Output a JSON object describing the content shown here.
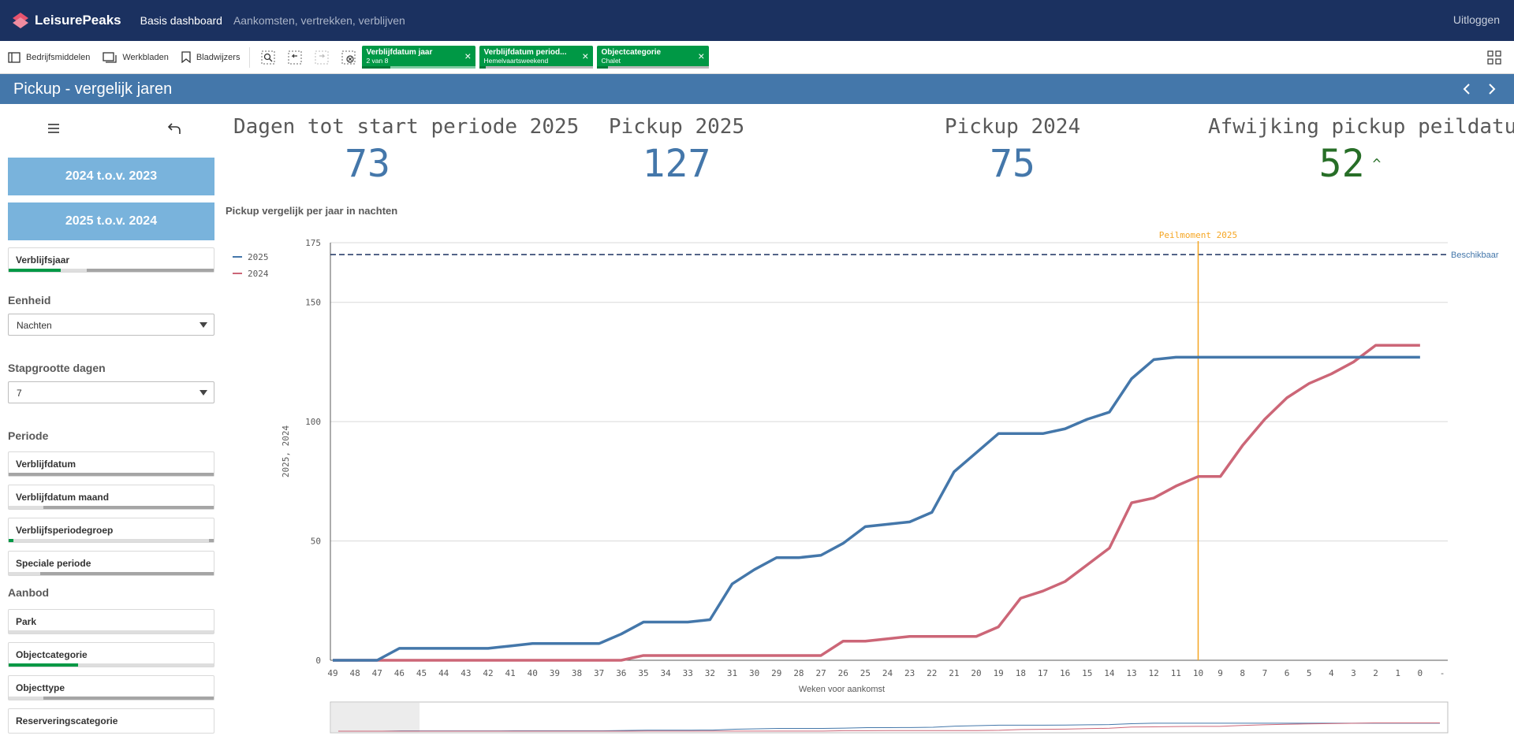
{
  "topbar": {
    "logo_text": "LeisurePeaks",
    "app_title": "Basis dashboard",
    "sheet_subtitle": "Aankomsten, vertrekken, verblijven",
    "logout": "Uitloggen"
  },
  "toolbar": {
    "assets": "Bedrijfsmiddelen",
    "sheets": "Werkbladen",
    "bookmarks": "Bladwijzers",
    "selections": [
      {
        "title": "Verblijfdatum jaar",
        "sub": "2 van 8",
        "fill": 0.25
      },
      {
        "title": "Verblijfdatum period...",
        "sub": "Hemelvaartsweekend",
        "fill": 0.05
      },
      {
        "title": "Objectcategorie",
        "sub": "Chalet",
        "fill": 0.1
      }
    ]
  },
  "sheet": {
    "title": "Pickup - vergelijk jaren"
  },
  "sidebar": {
    "btn_2024": "2024 t.o.v. 2023",
    "btn_2025": "2025 t.o.v. 2024",
    "verblijfsjaar": "Verblijfsjaar",
    "eenheid_label": "Eenheid",
    "eenheid_value": "Nachten",
    "stap_label": "Stapgrootte dagen",
    "stap_value": "7",
    "periode_label": "Periode",
    "periode_items": [
      "Verblijfdatum",
      "Verblijfdatum maand",
      "Verblijfsperiodegroep",
      "Speciale periode"
    ],
    "aanbod_label": "Aanbod",
    "aanbod_items": [
      "Park",
      "Objectcategorie",
      "Objecttype",
      "Reserveringscategorie"
    ]
  },
  "kpis": [
    {
      "title": "Dagen tot start periode 2025",
      "value": "73"
    },
    {
      "title": "Pickup 2025",
      "value": "127"
    },
    {
      "title": "Pickup 2024",
      "value": "75"
    },
    {
      "title": "Afwijking pickup peildatum",
      "value": "52"
    }
  ],
  "colors": {
    "topbar": "#1b3160",
    "sheetbar": "#4477aa",
    "series_2025": "#4477aa",
    "series_2024": "#cc6677",
    "peilmoment": "#f5a623",
    "selection_green": "#009845",
    "positive": "#276e27"
  },
  "chart_data": {
    "type": "line",
    "title": "Pickup vergelijk per jaar in nachten",
    "xlabel": "Weken voor aankomst",
    "ylabel": "2025, 2024",
    "categories": [
      "49",
      "48",
      "47",
      "46",
      "45",
      "44",
      "43",
      "42",
      "41",
      "40",
      "39",
      "38",
      "37",
      "36",
      "35",
      "34",
      "33",
      "32",
      "31",
      "30",
      "29",
      "28",
      "27",
      "26",
      "25",
      "24",
      "23",
      "22",
      "21",
      "20",
      "19",
      "18",
      "17",
      "16",
      "15",
      "14",
      "13",
      "12",
      "11",
      "10",
      "9",
      "8",
      "7",
      "6",
      "5",
      "4",
      "3",
      "2",
      "1",
      "0",
      "-"
    ],
    "ylim": [
      0,
      175
    ],
    "yticks": [
      0,
      50,
      100,
      150,
      175
    ],
    "series": [
      {
        "name": "2025",
        "values": [
          0,
          0,
          0,
          5,
          5,
          5,
          5,
          5,
          6,
          7,
          7,
          7,
          7,
          11,
          16,
          16,
          16,
          17,
          32,
          38,
          43,
          43,
          44,
          49,
          56,
          57,
          58,
          62,
          79,
          87,
          95,
          95,
          95,
          97,
          101,
          104,
          118,
          126,
          127,
          127,
          127,
          127,
          127,
          127,
          127,
          127,
          127,
          127,
          127,
          127,
          127
        ]
      },
      {
        "name": "2024",
        "values": [
          0,
          0,
          0,
          0,
          0,
          0,
          0,
          0,
          0,
          0,
          0,
          0,
          0,
          0,
          2,
          2,
          2,
          2,
          2,
          2,
          2,
          2,
          2,
          8,
          8,
          9,
          10,
          10,
          10,
          10,
          14,
          26,
          29,
          33,
          40,
          47,
          66,
          68,
          73,
          77,
          77,
          90,
          101,
          110,
          116,
          120,
          125,
          132,
          132,
          132,
          132
        ]
      }
    ],
    "reference_lines": [
      {
        "label": "Beschikbaar",
        "y": 170
      },
      {
        "label": "Peilmoment 2025",
        "x": "10"
      }
    ],
    "legend": "top-left"
  }
}
